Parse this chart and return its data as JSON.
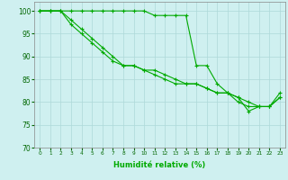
{
  "xlabel": "Humidité relative (%)",
  "background_color": "#cff0f0",
  "grid_color": "#add8d8",
  "line_color": "#00aa00",
  "xlim": [
    -0.5,
    23.5
  ],
  "ylim": [
    70,
    102
  ],
  "yticks": [
    70,
    75,
    80,
    85,
    90,
    95,
    100
  ],
  "xticks": [
    0,
    1,
    2,
    3,
    4,
    5,
    6,
    7,
    8,
    9,
    10,
    11,
    12,
    13,
    14,
    15,
    16,
    17,
    18,
    19,
    20,
    21,
    22,
    23
  ],
  "series": [
    [
      100,
      100,
      100,
      100,
      100,
      100,
      100,
      100,
      100,
      100,
      100,
      99,
      99,
      99,
      99,
      88,
      88,
      84,
      82,
      80,
      79,
      79,
      79,
      82
    ],
    [
      100,
      100,
      100,
      98,
      96,
      94,
      92,
      90,
      88,
      88,
      87,
      87,
      86,
      85,
      84,
      84,
      83,
      82,
      82,
      81,
      80,
      79,
      79,
      81
    ],
    [
      100,
      100,
      100,
      97,
      95,
      93,
      91,
      89,
      88,
      88,
      87,
      86,
      85,
      84,
      84,
      84,
      83,
      82,
      82,
      81,
      78,
      79,
      79,
      81
    ]
  ]
}
